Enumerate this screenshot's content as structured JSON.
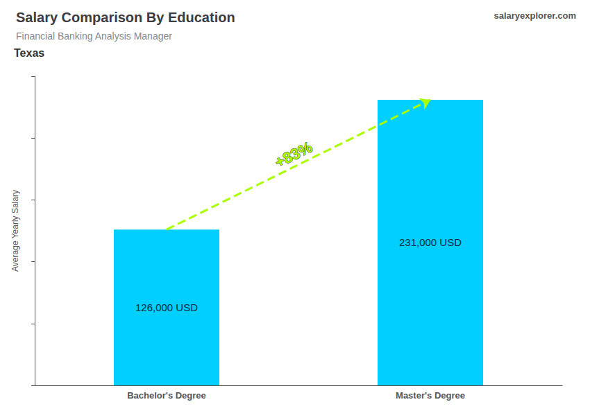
{
  "chart_data": {
    "type": "bar",
    "title": "Salary Comparison By Education",
    "subtitle": "Financial Banking Analysis Manager",
    "categories": [
      "Bachelor's Degree",
      "Master's Degree"
    ],
    "values": [
      126000,
      231000
    ],
    "value_labels": [
      "126,000 USD",
      "231,000 USD"
    ],
    "color": "#00CFFF",
    "data_labels": true,
    "ylabel": "Average Yearly Salary",
    "ylim": [
      0,
      250000
    ],
    "yticks": [
      0,
      50000,
      100000,
      150000,
      200000,
      250000
    ],
    "tick_labels": "x",
    "grid": false,
    "annotations": [
      {
        "text": "Texas"
      },
      {
        "text": "salaryexplorer.com"
      },
      {
        "text": "+83%",
        "from": "Bachelor's Degree",
        "to": "Master's Degree",
        "color": "#AAFF00"
      }
    ]
  }
}
